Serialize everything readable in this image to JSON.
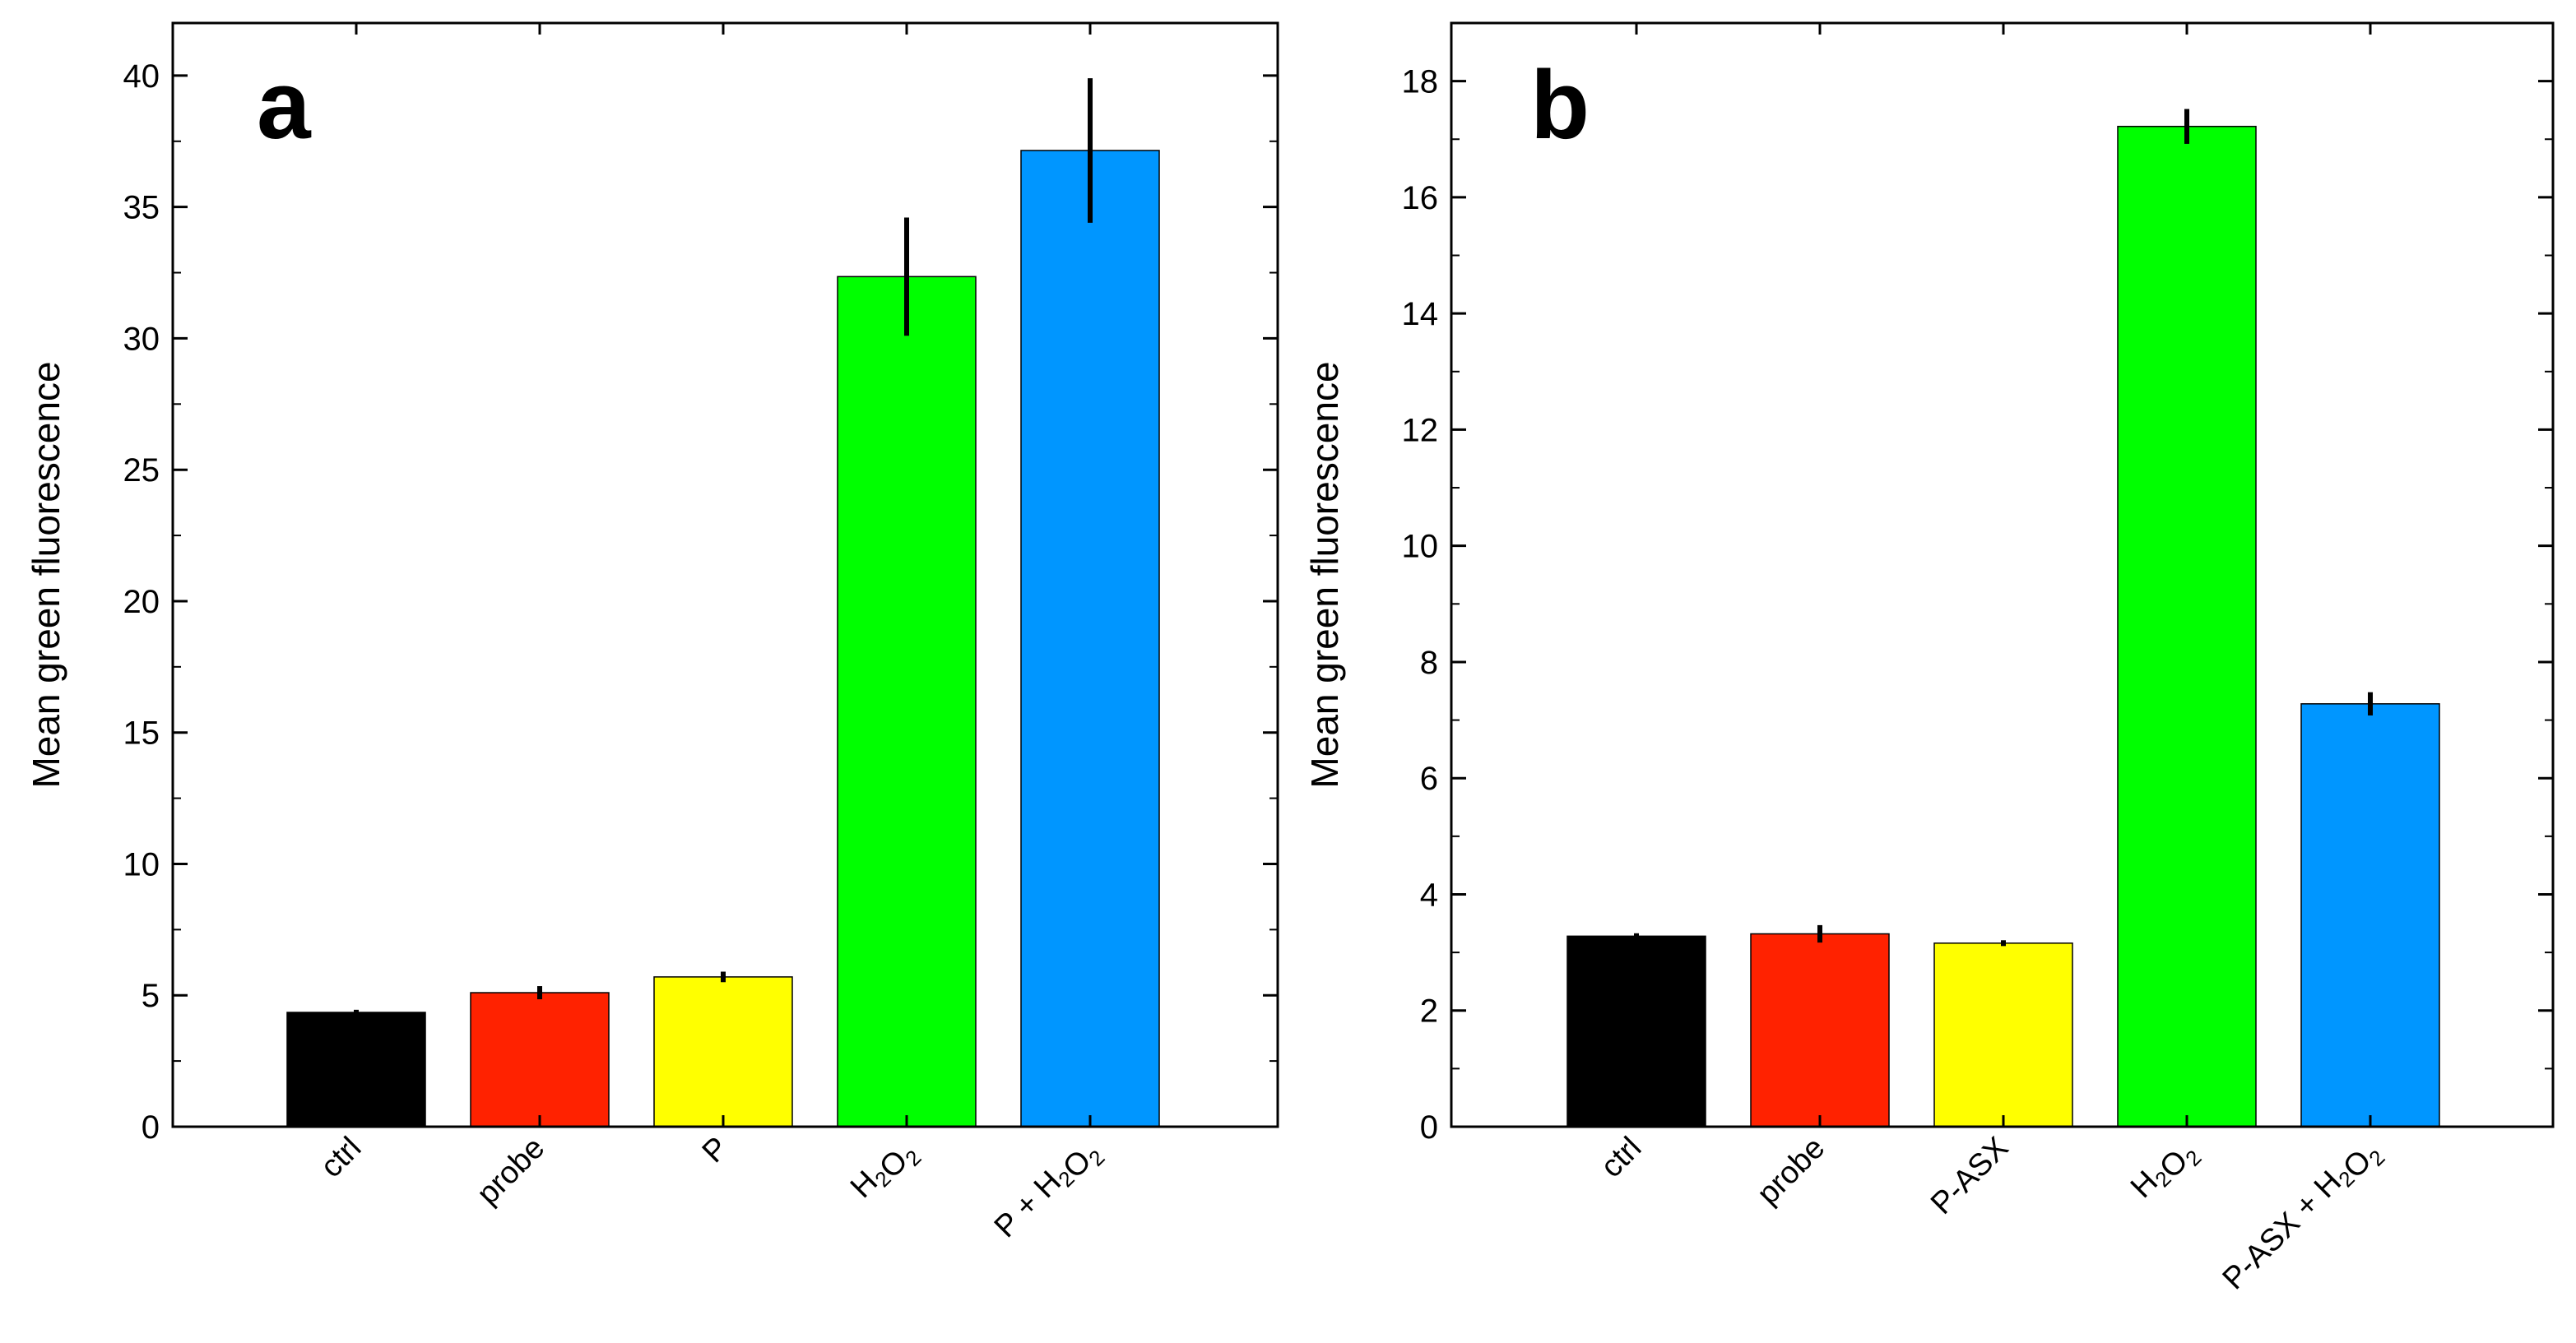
{
  "chart_data": [
    {
      "type": "bar",
      "panel_label": "a",
      "title": "",
      "xlabel": "",
      "ylabel": "Mean green fluorescence",
      "ylim": [
        0,
        42
      ],
      "yticks": [
        0,
        5,
        10,
        15,
        20,
        25,
        30,
        35,
        40
      ],
      "ytick_labels": [
        "0",
        "5",
        "10",
        "15",
        "20",
        "25",
        "30",
        "35",
        "40"
      ],
      "categories": [
        {
          "text": "ctrl",
          "parts": [
            {
              "t": "ctrl"
            }
          ]
        },
        {
          "text": "probe",
          "parts": [
            {
              "t": "probe"
            }
          ]
        },
        {
          "text": "P",
          "parts": [
            {
              "t": "P"
            }
          ]
        },
        {
          "text": "H2O2",
          "parts": [
            {
              "t": "H"
            },
            {
              "t": "2",
              "sub": true
            },
            {
              "t": "O"
            },
            {
              "t": "2",
              "sub": true
            }
          ]
        },
        {
          "text": "P + H2O2",
          "parts": [
            {
              "t": "P + H"
            },
            {
              "t": "2",
              "sub": true
            },
            {
              "t": "O"
            },
            {
              "t": "2",
              "sub": true
            }
          ]
        }
      ],
      "values": [
        4.35,
        5.1,
        5.7,
        32.35,
        37.15
      ],
      "errors": [
        0.1,
        0.25,
        0.2,
        2.25,
        2.75
      ],
      "colors": [
        "#000000",
        "#ff2200",
        "#ffff00",
        "#00ff00",
        "#0096ff"
      ],
      "grid": false,
      "legend": "none"
    },
    {
      "type": "bar",
      "panel_label": "b",
      "title": "",
      "xlabel": "",
      "ylabel": "Mean green fluorescence",
      "ylim": [
        0,
        19
      ],
      "yticks": [
        0,
        2,
        4,
        6,
        8,
        10,
        12,
        14,
        16,
        18
      ],
      "ytick_labels": [
        "0",
        "2",
        "4",
        "6",
        "8",
        "10",
        "12",
        "14",
        "16",
        "18"
      ],
      "categories": [
        {
          "text": "ctrl",
          "parts": [
            {
              "t": "ctrl"
            }
          ]
        },
        {
          "text": "probe",
          "parts": [
            {
              "t": "probe"
            }
          ]
        },
        {
          "text": "P-ASX",
          "parts": [
            {
              "t": "P-ASX"
            }
          ]
        },
        {
          "text": "H2O2",
          "parts": [
            {
              "t": "H"
            },
            {
              "t": "2",
              "sub": true
            },
            {
              "t": "O"
            },
            {
              "t": "2",
              "sub": true
            }
          ]
        },
        {
          "text": "P-ASX + H2O2",
          "parts": [
            {
              "t": "P-ASX + H"
            },
            {
              "t": "2",
              "sub": true
            },
            {
              "t": "O"
            },
            {
              "t": "2",
              "sub": true
            }
          ]
        }
      ],
      "values": [
        3.28,
        3.32,
        3.16,
        17.22,
        7.28
      ],
      "errors": [
        0.05,
        0.15,
        0.05,
        0.3,
        0.2
      ],
      "colors": [
        "#000000",
        "#ff2200",
        "#ffff00",
        "#00ff00",
        "#0096ff"
      ],
      "grid": false,
      "legend": "none"
    }
  ]
}
